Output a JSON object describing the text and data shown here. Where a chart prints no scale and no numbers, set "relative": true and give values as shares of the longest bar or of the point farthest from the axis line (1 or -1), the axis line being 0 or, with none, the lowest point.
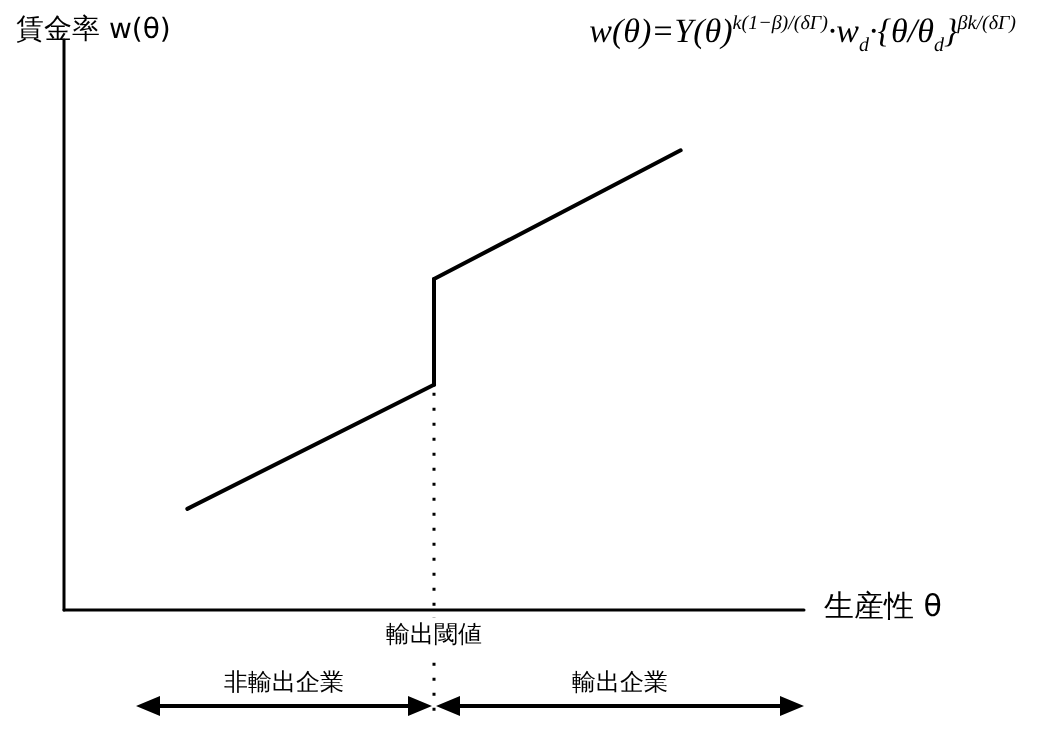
{
  "chart_data": {
    "type": "line",
    "relative": true,
    "title": "w(θ)=Υ(θ)$^{k(1−β)/(δΓ)}$·w$_{d}$·{θ/θ$_{d}$}$^{βk/(δΓ)}$",
    "ylabel": "賃金率 w(θ)",
    "xlabel": "生産性 θ",
    "categories": [
      null,
      null,
      null
    ],
    "grid": false,
    "marker": "none",
    "line_style": "solid",
    "series": [
      {
        "color": "#000000",
        "values": [
          0.22,
          0.49,
          null
        ]
      },
      {
        "color": "#000000",
        "values": [
          null,
          0.72,
          1.0
        ]
      }
    ],
    "annotations": [
      "輸出閾値",
      "非輸出企業",
      "輸出企業"
    ]
  }
}
